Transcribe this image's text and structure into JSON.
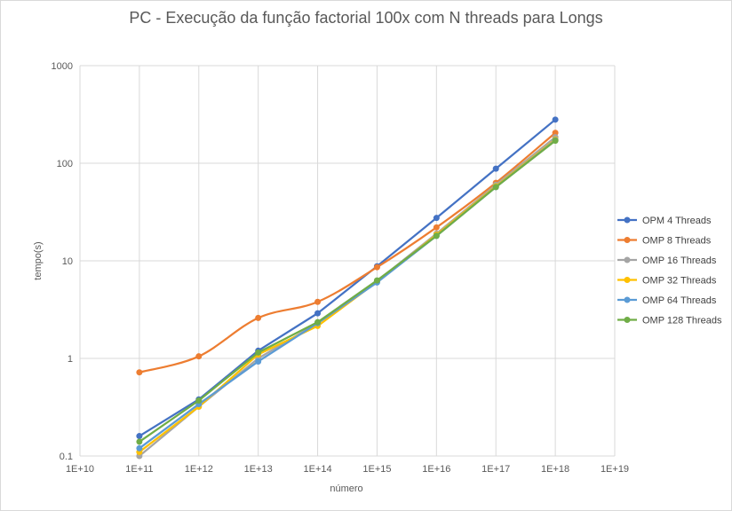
{
  "chart_data": {
    "type": "line",
    "title": "PC - Execução da função factorial 100x com N threads para Longs",
    "xlabel": "número",
    "ylabel": "tempo(s)",
    "x_scale": "log",
    "y_scale": "log",
    "xlim": [
      10000000000.0,
      1e+19
    ],
    "ylim": [
      0.1,
      1000
    ],
    "grid": true,
    "legend_position": "right",
    "x_tick_labels": [
      "1E+10",
      "1E+11",
      "1E+12",
      "1E+13",
      "1E+14",
      "1E+15",
      "1E+16",
      "1E+17",
      "1E+18",
      "1E+19"
    ],
    "y_tick_labels": [
      "0.1",
      "1",
      "10",
      "100",
      "1000"
    ],
    "x": [
      100000000000.0,
      1000000000000.0,
      10000000000000.0,
      100000000000000.0,
      1000000000000000.0,
      1e+16,
      1e+17,
      1e+18
    ],
    "series": [
      {
        "name": "OPM 4 Threads",
        "color": "#4472c4",
        "smooth": false,
        "values": [
          0.16,
          0.38,
          1.2,
          2.9,
          8.8,
          27.5,
          88,
          280
        ]
      },
      {
        "name": "OMP 8 Threads",
        "color": "#ed7d31",
        "smooth": true,
        "values": [
          0.72,
          1.05,
          2.6,
          3.8,
          8.6,
          22,
          63,
          205
        ]
      },
      {
        "name": "OMP 16 Threads",
        "color": "#a5a5a5",
        "smooth": false,
        "values": [
          0.1,
          0.32,
          1.0,
          2.3,
          6.2,
          19,
          60,
          185
        ]
      },
      {
        "name": "OMP 32 Threads",
        "color": "#ffc000",
        "smooth": false,
        "values": [
          0.11,
          0.32,
          1.1,
          2.15,
          6.1,
          18.5,
          58,
          175
        ]
      },
      {
        "name": "OMP 64 Threads",
        "color": "#5b9bd5",
        "smooth": false,
        "values": [
          0.12,
          0.34,
          0.93,
          2.3,
          6.0,
          18,
          57,
          172
        ]
      },
      {
        "name": "OMP 128 Threads",
        "color": "#70ad47",
        "smooth": false,
        "values": [
          0.14,
          0.37,
          1.15,
          2.35,
          6.3,
          18,
          57,
          170
        ]
      }
    ]
  }
}
